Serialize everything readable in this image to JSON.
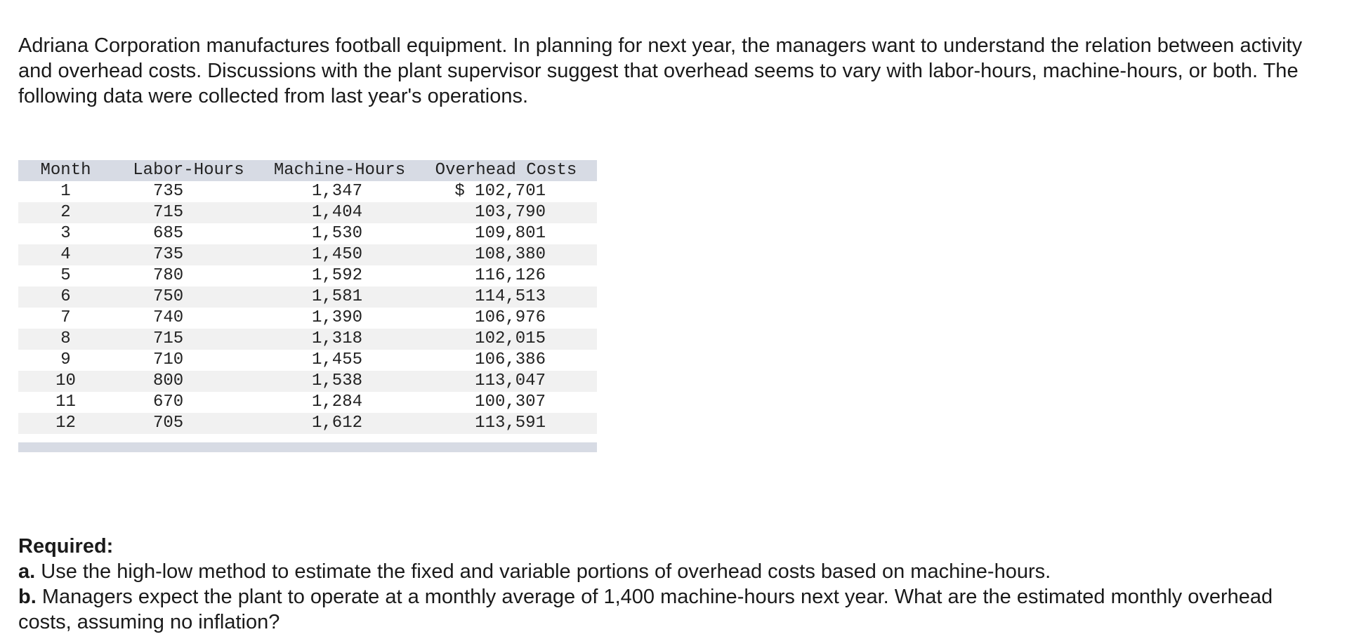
{
  "intro": "Adriana Corporation manufactures football equipment. In planning for next year, the managers want to understand the relation between activity and overhead costs. Discussions with the plant supervisor suggest that overhead seems to vary with labor-hours, machine-hours, or both. The following data were collected from last year's operations.",
  "table": {
    "headers": {
      "month": "Month",
      "labor": "Labor-Hours",
      "machine": "Machine-Hours",
      "overhead": "Overhead Costs"
    },
    "rows": [
      {
        "month": "1",
        "labor": "735",
        "machine": "1,347",
        "overhead": "$ 102,701"
      },
      {
        "month": "2",
        "labor": "715",
        "machine": "1,404",
        "overhead": "103,790"
      },
      {
        "month": "3",
        "labor": "685",
        "machine": "1,530",
        "overhead": "109,801"
      },
      {
        "month": "4",
        "labor": "735",
        "machine": "1,450",
        "overhead": "108,380"
      },
      {
        "month": "5",
        "labor": "780",
        "machine": "1,592",
        "overhead": "116,126"
      },
      {
        "month": "6",
        "labor": "750",
        "machine": "1,581",
        "overhead": "114,513"
      },
      {
        "month": "7",
        "labor": "740",
        "machine": "1,390",
        "overhead": "106,976"
      },
      {
        "month": "8",
        "labor": "715",
        "machine": "1,318",
        "overhead": "102,015"
      },
      {
        "month": "9",
        "labor": "710",
        "machine": "1,455",
        "overhead": "106,386"
      },
      {
        "month": "10",
        "labor": "800",
        "machine": "1,538",
        "overhead": "113,047"
      },
      {
        "month": "11",
        "labor": "670",
        "machine": "1,284",
        "overhead": "100,307"
      },
      {
        "month": "12",
        "labor": "705",
        "machine": "1,612",
        "overhead": "113,591"
      }
    ]
  },
  "required": {
    "heading": "Required:",
    "items": [
      {
        "letter": "a.",
        "text": " Use the high-low method to estimate the fixed and variable portions of overhead costs based on machine-hours."
      },
      {
        "letter": "b.",
        "text": " Managers expect the plant to operate at a monthly average of 1,400 machine-hours next year. What are the estimated monthly overhead costs, assuming no inflation?"
      }
    ]
  },
  "colors": {
    "header_band": "#d7dbe4",
    "stripe": "#f1f1f1",
    "text": "#1a1a1a"
  }
}
